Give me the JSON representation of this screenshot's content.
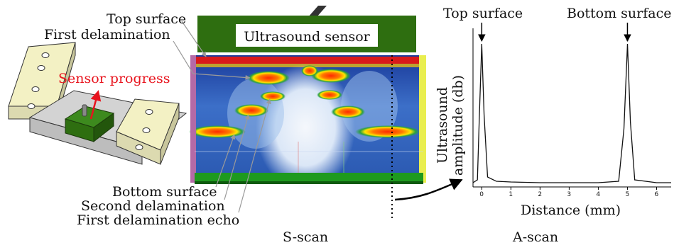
{
  "specimen": {
    "sensor_progress_label": "Sensor progress"
  },
  "sscan": {
    "sensor_label": "Ultrasound sensor",
    "caption": "S-scan",
    "callouts": {
      "top_surface": "Top surface",
      "first_delamination": "First delamination",
      "bottom_surface": "Bottom surface",
      "second_delamination": "Second delamination",
      "first_delamination_echo": "First delamination echo"
    }
  },
  "ascan": {
    "caption": "A-scan",
    "peak_labels": {
      "top_surface": "Top surface",
      "bottom_surface": "Bottom surface"
    },
    "chart_data": {
      "type": "line",
      "title": "",
      "xlabel": "Distance (mm)",
      "ylabel_lines": [
        "Ultrasound",
        "amplitude (db)"
      ],
      "xlim": [
        -0.3,
        6.5
      ],
      "x_ticks": [
        0,
        1,
        2,
        3,
        4,
        5,
        6
      ],
      "grid": false,
      "series": [
        {
          "points": [
            [
              -0.3,
              0.02
            ],
            [
              -0.15,
              0.04
            ],
            [
              -0.08,
              0.5
            ],
            [
              0.0,
              1.0
            ],
            [
              0.08,
              0.5
            ],
            [
              0.2,
              0.06
            ],
            [
              0.5,
              0.03
            ],
            [
              1.0,
              0.025
            ],
            [
              2.0,
              0.02
            ],
            [
              3.0,
              0.02
            ],
            [
              4.0,
              0.02
            ],
            [
              4.7,
              0.03
            ],
            [
              4.88,
              0.4
            ],
            [
              5.0,
              1.0
            ],
            [
              5.1,
              0.45
            ],
            [
              5.25,
              0.04
            ],
            [
              6.0,
              0.02
            ],
            [
              6.5,
              0.02
            ]
          ]
        }
      ]
    }
  },
  "colors": {
    "sensor_green": "#2e6e10",
    "arrow_red": "#e8141e",
    "plate_yellow": "#f3f1c4",
    "beam_gray": "#d3d3d3"
  }
}
